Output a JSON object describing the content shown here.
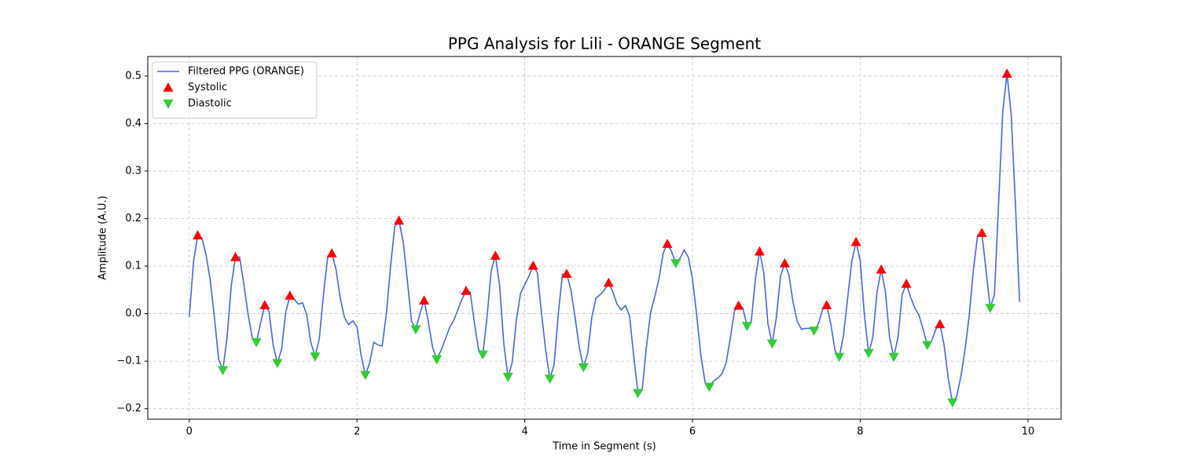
{
  "chart_data": {
    "type": "line",
    "title": "PPG Analysis for Lili - ORANGE Segment",
    "xlabel": "Time in Segment (s)",
    "ylabel": "Amplitude (A.U.)",
    "xlim": [
      -0.495,
      10.395
    ],
    "ylim": [
      -0.222,
      0.541
    ],
    "xticks": [
      0,
      2,
      4,
      6,
      8,
      10
    ],
    "yticks": [
      {
        "value": -0.2,
        "label": "−0.2"
      },
      {
        "value": -0.1,
        "label": "−0.1"
      },
      {
        "value": 0,
        "label": "0.0"
      },
      0.1,
      0.2,
      0.3,
      0.4,
      0.5
    ],
    "grid": true,
    "legend": "upper left",
    "series": [
      {
        "name": "Filtered PPG (ORANGE)",
        "color": "#4169e1",
        "x": [
          0,
          0.05,
          0.1,
          0.15,
          0.2,
          0.25,
          0.3,
          0.35,
          0.4,
          0.45,
          0.5,
          0.55,
          0.6,
          0.65,
          0.7,
          0.75,
          0.8,
          0.85,
          0.9,
          0.95,
          1,
          1.05,
          1.1,
          1.15,
          1.2,
          1.25,
          1.3,
          1.35,
          1.4,
          1.45,
          1.5,
          1.55,
          1.6,
          1.65,
          1.7,
          1.75,
          1.8,
          1.85,
          1.9,
          1.95,
          2,
          2.05,
          2.1,
          2.15,
          2.2,
          2.25,
          2.3,
          2.35,
          2.4,
          2.45,
          2.5,
          2.55,
          2.6,
          2.65,
          2.7,
          2.75,
          2.8,
          2.85,
          2.9,
          2.95,
          3,
          3.05,
          3.1,
          3.15,
          3.2,
          3.25,
          3.3,
          3.35,
          3.4,
          3.45,
          3.5,
          3.55,
          3.6,
          3.65,
          3.7,
          3.75,
          3.8,
          3.85,
          3.9,
          3.95,
          4,
          4.05,
          4.1,
          4.15,
          4.2,
          4.25,
          4.3,
          4.35,
          4.4,
          4.45,
          4.5,
          4.55,
          4.6,
          4.65,
          4.7,
          4.75,
          4.8,
          4.85,
          4.9,
          4.95,
          5,
          5.05,
          5.1,
          5.15,
          5.2,
          5.25,
          5.3,
          5.35,
          5.4,
          5.45,
          5.5,
          5.55,
          5.6,
          5.65,
          5.7,
          5.75,
          5.8,
          5.85,
          5.9,
          5.95,
          6,
          6.05,
          6.1,
          6.15,
          6.2,
          6.25,
          6.3,
          6.35,
          6.4,
          6.45,
          6.5,
          6.55,
          6.6,
          6.65,
          6.7,
          6.75,
          6.8,
          6.85,
          6.9,
          6.95,
          7,
          7.05,
          7.1,
          7.15,
          7.2,
          7.25,
          7.3,
          7.35,
          7.4,
          7.45,
          7.5,
          7.55,
          7.6,
          7.65,
          7.7,
          7.75,
          7.8,
          7.85,
          7.9,
          7.95,
          8,
          8.05,
          8.1,
          8.15,
          8.2,
          8.25,
          8.3,
          8.35,
          8.4,
          8.45,
          8.5,
          8.55,
          8.6,
          8.65,
          8.7,
          8.75,
          8.8,
          8.85,
          8.9,
          8.95,
          9,
          9.05,
          9.1,
          9.15,
          9.2,
          9.25,
          9.3,
          9.35,
          9.4,
          9.45,
          9.5,
          9.55,
          9.6,
          9.65,
          9.7,
          9.75,
          9.8,
          9.85,
          9.9
        ],
        "values": [
          -0.007,
          0.108,
          0.165,
          0.159,
          0.124,
          0.07,
          -0.008,
          -0.096,
          -0.119,
          -0.05,
          0.058,
          0.119,
          0.119,
          0.063,
          0,
          -0.05,
          -0.06,
          -0.02,
          0.018,
          0.005,
          -0.066,
          -0.104,
          -0.075,
          0.003,
          0.038,
          0.031,
          0.02,
          0.023,
          -0.002,
          -0.061,
          -0.09,
          -0.053,
          0.04,
          0.119,
          0.127,
          0.093,
          0.033,
          -0.008,
          -0.023,
          -0.015,
          -0.028,
          -0.089,
          -0.129,
          -0.104,
          -0.06,
          -0.066,
          -0.068,
          0,
          0.1,
          0.183,
          0.196,
          0.152,
          0.07,
          -0.016,
          -0.033,
          0,
          0.028,
          -0.017,
          -0.07,
          -0.096,
          -0.078,
          -0.055,
          -0.031,
          -0.015,
          0.007,
          0.03,
          0.048,
          0.045,
          -0.02,
          -0.076,
          -0.086,
          -0.008,
          0.091,
          0.122,
          0.06,
          -0.063,
          -0.133,
          -0.103,
          -0.013,
          0.043,
          0.061,
          0.079,
          0.101,
          0.086,
          0,
          -0.078,
          -0.137,
          -0.107,
          0,
          0.083,
          0.084,
          0.05,
          -0.008,
          -0.071,
          -0.113,
          -0.083,
          -0.007,
          0.033,
          0.04,
          0.05,
          0.065,
          0.046,
          0.02,
          0.008,
          0.017,
          -0.005,
          -0.091,
          -0.167,
          -0.161,
          -0.071,
          0.002,
          0.036,
          0.073,
          0.127,
          0.147,
          0.131,
          0.106,
          0.116,
          0.134,
          0.119,
          0.073,
          -0.003,
          -0.088,
          -0.144,
          -0.154,
          -0.142,
          -0.136,
          -0.127,
          -0.104,
          -0.053,
          0.005,
          0.017,
          0.012,
          -0.026,
          -0.017,
          0.073,
          0.131,
          0.086,
          -0.022,
          -0.063,
          -0.008,
          0.079,
          0.106,
          0.081,
          0.023,
          -0.017,
          -0.033,
          -0.031,
          -0.031,
          -0.036,
          -0.022,
          0.008,
          0.018,
          -0.022,
          -0.078,
          -0.091,
          -0.046,
          0.033,
          0.111,
          0.151,
          0.111,
          -0.003,
          -0.083,
          -0.05,
          0.045,
          0.093,
          0.046,
          -0.05,
          -0.091,
          -0.05,
          0.04,
          0.063,
          0.035,
          0.012,
          -0.003,
          -0.033,
          -0.066,
          -0.058,
          -0.033,
          -0.022,
          -0.066,
          -0.137,
          -0.187,
          -0.174,
          -0.132,
          -0.075,
          -0.003,
          0.094,
          0.165,
          0.17,
          0.091,
          0.012,
          0.04,
          0.232,
          0.426,
          0.505,
          0.419,
          0.232,
          0.025
        ]
      },
      {
        "name": "Systolic",
        "color": "#ff0000",
        "marker": "triangle-up",
        "x": [
          0.1,
          0.55,
          0.9,
          1.2,
          1.7,
          2.5,
          2.8,
          3.3,
          3.65,
          4.1,
          4.5,
          5,
          5.7,
          6.55,
          6.8,
          7.1,
          7.6,
          7.95,
          8.25,
          8.55,
          8.95,
          9.45,
          9.75
        ],
        "values": [
          0.165,
          0.119,
          0.018,
          0.038,
          0.127,
          0.196,
          0.028,
          0.048,
          0.122,
          0.101,
          0.084,
          0.065,
          0.147,
          0.017,
          0.131,
          0.106,
          0.018,
          0.151,
          0.093,
          0.063,
          -0.022,
          0.17,
          0.505
        ]
      },
      {
        "name": "Diastolic",
        "color": "#32cd32",
        "marker": "triangle-down",
        "x": [
          0.4,
          0.8,
          1.05,
          1.5,
          2.1,
          2.7,
          2.95,
          3.5,
          3.8,
          4.3,
          4.7,
          5.35,
          5.8,
          6.2,
          6.65,
          6.95,
          7.45,
          7.75,
          8.1,
          8.4,
          8.8,
          9.1,
          9.55
        ],
        "values": [
          -0.119,
          -0.06,
          -0.104,
          -0.09,
          -0.129,
          -0.033,
          -0.096,
          -0.086,
          -0.133,
          -0.137,
          -0.113,
          -0.167,
          0.106,
          -0.154,
          -0.026,
          -0.063,
          -0.036,
          -0.091,
          -0.083,
          -0.091,
          -0.066,
          -0.187,
          0.012
        ]
      }
    ]
  }
}
